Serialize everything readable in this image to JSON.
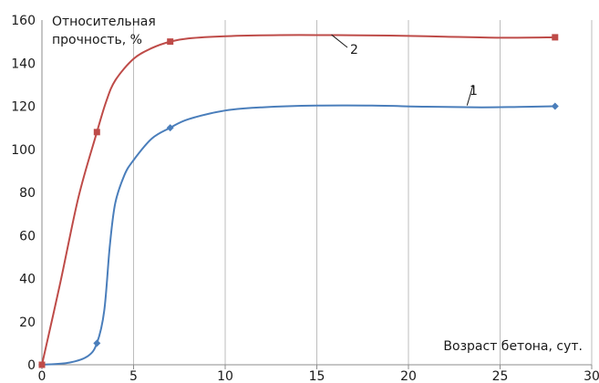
{
  "chart_data": {
    "type": "line",
    "ylabel_lines": [
      "Относительная",
      "прочность, %"
    ],
    "xlabel": "Возраст бетона, сут.",
    "xlim": [
      0,
      30
    ],
    "ylim": [
      0,
      160
    ],
    "xticks": [
      0,
      5,
      10,
      15,
      20,
      25,
      30
    ],
    "yticks": [
      0,
      20,
      40,
      60,
      80,
      100,
      120,
      140,
      160
    ],
    "grid": "vertical",
    "series": [
      {
        "name": "1",
        "color": "#4a7ebb",
        "marker": "diamond",
        "points": [
          [
            0,
            0
          ],
          [
            3,
            10
          ],
          [
            7,
            110
          ],
          [
            28,
            120
          ]
        ],
        "curve": [
          [
            0,
            0
          ],
          [
            1.5,
            1
          ],
          [
            2.5,
            4
          ],
          [
            3,
            10
          ],
          [
            3.4,
            25
          ],
          [
            3.7,
            55
          ],
          [
            4,
            75
          ],
          [
            4.5,
            88
          ],
          [
            5,
            95
          ],
          [
            6,
            105
          ],
          [
            7,
            110
          ],
          [
            8,
            114
          ],
          [
            10,
            118
          ],
          [
            12,
            119.5
          ],
          [
            15,
            120.3
          ],
          [
            18,
            120.3
          ],
          [
            21,
            119.8
          ],
          [
            24,
            119.5
          ],
          [
            26,
            119.7
          ],
          [
            28,
            120
          ]
        ]
      },
      {
        "name": "2",
        "color": "#be4b48",
        "marker": "square",
        "points": [
          [
            0,
            0
          ],
          [
            3,
            108
          ],
          [
            7,
            150
          ],
          [
            28,
            152
          ]
        ],
        "curve": [
          [
            0,
            0
          ],
          [
            1,
            38
          ],
          [
            2,
            78
          ],
          [
            3,
            108
          ],
          [
            3.5,
            122
          ],
          [
            4,
            132
          ],
          [
            5,
            142
          ],
          [
            6,
            147
          ],
          [
            7,
            150
          ],
          [
            8,
            151.5
          ],
          [
            10,
            152.5
          ],
          [
            13,
            153
          ],
          [
            16,
            153
          ],
          [
            19,
            152.8
          ],
          [
            22,
            152.3
          ],
          [
            25,
            151.8
          ],
          [
            28,
            152
          ]
        ]
      }
    ],
    "series_labels": [
      {
        "text": "1",
        "for": "1"
      },
      {
        "text": "2",
        "for": "2"
      }
    ]
  }
}
